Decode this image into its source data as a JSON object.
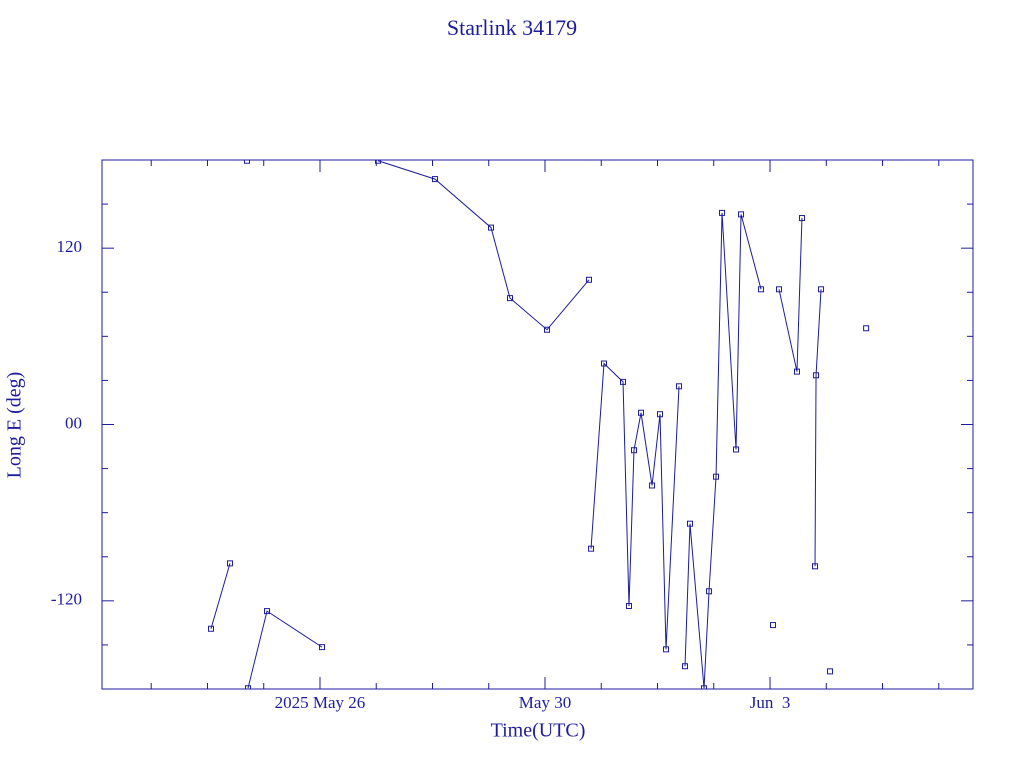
{
  "chart_data": {
    "type": "line",
    "title": "Starlink 34179",
    "x_label": "Time(UTC)",
    "y_label": "Long E (deg)",
    "color": "#1c1c9c",
    "x": [
      "2025-05-24T01:30Z",
      "2025-05-24T09:36Z",
      null,
      "2025-05-24T16:52Z",
      null,
      "2025-05-24T17:17Z",
      "2025-05-25T01:24Z",
      "2025-05-26T00:51Z",
      null,
      "2025-05-27T00:45Z",
      "2025-05-28T01:04Z",
      "2025-05-29T00:58Z",
      "2025-05-29T09:04Z",
      "2025-05-30T00:51Z",
      "2025-05-30T18:46Z",
      null,
      "2025-05-30T19:38Z",
      "2025-05-31T01:10Z",
      "2025-05-31T09:17Z",
      "2025-05-31T11:50Z",
      "2025-05-31T13:58Z",
      "2025-05-31T16:58Z",
      "2025-05-31T21:40Z",
      "2025-06-01T01:04Z",
      "2025-06-01T03:38Z",
      "2025-06-01T09:11Z",
      null,
      "2025-06-01T11:44Z",
      "2025-06-01T13:52Z",
      "2025-06-01T19:51Z",
      "2025-06-01T21:59Z",
      "2025-06-02T00:58Z",
      "2025-06-02T03:32Z",
      "2025-06-02T09:30Z",
      "2025-06-02T11:38Z",
      "2025-06-02T20:10Z",
      null,
      "2025-06-03T01:17Z",
      null,
      "2025-06-03T03:50Z",
      "2025-06-03T11:30Z",
      "2025-06-03T13:38Z",
      null,
      "2025-06-03T19:12Z",
      "2025-06-03T19:38Z",
      "2025-06-03T21:46Z",
      null,
      "2025-06-04T01:36Z",
      null,
      "2025-06-04T17:00Z"
    ],
    "values": [
      -139,
      -94.5,
      null,
      179.5,
      null,
      -179.5,
      -127,
      -151.5,
      null,
      179.5,
      167,
      134,
      86,
      64.5,
      98.5,
      null,
      -84.5,
      41.5,
      29,
      -123.5,
      -17.5,
      8,
      -41.5,
      7,
      -153,
      26,
      null,
      -164.5,
      -67.5,
      -179.5,
      -113.5,
      -35.5,
      144,
      -17,
      143,
      92,
      null,
      -136.5,
      null,
      92,
      36,
      140.5,
      null,
      -96.5,
      33.5,
      92,
      null,
      -168,
      null,
      65.5
    ],
    "xlim": [
      "2025-05-22T03:00Z",
      "2025-06-06T14:36Z"
    ],
    "xticks": [
      {
        "value": "2025-05-26T00:00Z",
        "label": "2025 May 26"
      },
      {
        "value": "2025-05-30T00:00Z",
        "label": "May 30"
      },
      {
        "value": "2025-06-03T00:00Z",
        "label": "Jun  3"
      }
    ],
    "x_minor_ticks": [
      "2025-05-23T00:00Z",
      "2025-05-24T00:00Z",
      "2025-05-25T00:00Z",
      "2025-05-27T00:00Z",
      "2025-05-28T00:00Z",
      "2025-05-29T00:00Z",
      "2025-05-31T00:00Z",
      "2025-06-01T00:00Z",
      "2025-06-02T00:00Z",
      "2025-06-04T00:00Z",
      "2025-06-05T00:00Z",
      "2025-06-06T00:00Z"
    ],
    "ylim": [
      -180,
      180
    ],
    "yticks": [
      -120,
      {
        "value": 0,
        "label": "00"
      },
      120
    ],
    "y_minor_ticks": [
      -150,
      -90,
      -60,
      -30,
      30,
      60,
      90,
      150
    ],
    "grid": false
  }
}
